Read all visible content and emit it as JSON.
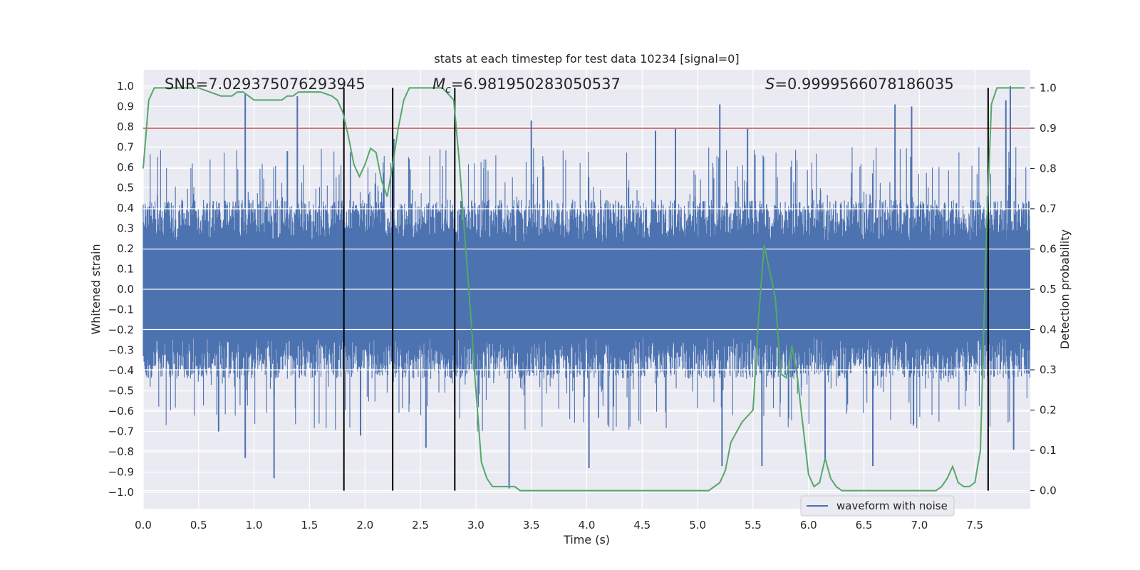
{
  "chart_data": {
    "type": "line",
    "title": "stats at each timestep for test data 10234 [signal=0]",
    "xlabel": "Time (s)",
    "ylabel_left": "Whitened strain",
    "ylabel_right": "Detection probability",
    "xlim": [
      0.0,
      8.0
    ],
    "ylim_left": [
      -1.08,
      1.08
    ],
    "ylim_right": [
      -0.045,
      1.045
    ],
    "x_ticks": [
      0.0,
      0.5,
      1.0,
      1.5,
      2.0,
      2.5,
      3.0,
      3.5,
      4.0,
      4.5,
      5.0,
      5.5,
      6.0,
      6.5,
      7.0,
      7.5
    ],
    "x_tick_labels": [
      "0.0",
      "0.5",
      "1.0",
      "1.5",
      "2.0",
      "2.5",
      "3.0",
      "3.5",
      "4.0",
      "4.5",
      "5.0",
      "5.5",
      "6.0",
      "6.5",
      "7.0",
      "7.5"
    ],
    "y_left_ticks": [
      1.0,
      0.9,
      0.8,
      0.7,
      0.6,
      0.5,
      0.4,
      0.3,
      0.2,
      0.1,
      0.0,
      -0.1,
      -0.2,
      -0.3,
      -0.4,
      -0.5,
      -0.6,
      -0.7,
      -0.8,
      -0.9,
      -1.0
    ],
    "y_left_tick_labels": [
      "1.0",
      "0.9",
      "0.8",
      "0.7",
      "0.6",
      "0.5",
      "0.4",
      "0.3",
      "0.2",
      "0.1",
      "0.0",
      "−0.1",
      "−0.2",
      "−0.3",
      "−0.4",
      "−0.5",
      "−0.6",
      "−0.7",
      "−0.8",
      "−0.9",
      "−1.0"
    ],
    "y_right_ticks": [
      1.0,
      0.9,
      0.8,
      0.7,
      0.6,
      0.5,
      0.4,
      0.3,
      0.2,
      0.1,
      0.0
    ],
    "y_right_tick_labels": [
      "1.0",
      "0.9",
      "0.8",
      "0.7",
      "0.6",
      "0.5",
      "0.4",
      "0.3",
      "0.2",
      "0.1",
      "0.0"
    ],
    "grid": true,
    "annotations": {
      "snr": "SNR=7.029375076293945",
      "mc_symbol": "M",
      "mc_subscript": "c",
      "mc_value": "=6.981950283050537",
      "s_symbol": "S",
      "s_value": "=0.9999566078186035"
    },
    "threshold": {
      "value": 0.9,
      "axis": "right",
      "color": "#c44e52"
    },
    "vertical_markers": [
      1.81,
      2.25,
      2.81,
      7.62
    ],
    "legend": {
      "label": "waveform with noise",
      "placement": "lower-right"
    },
    "waveform": {
      "name": "waveform with noise",
      "color": "#4c72b0",
      "envelope_pos_base": 0.42,
      "envelope_neg_base": -0.42,
      "spikes": [
        [
          0.92,
          0.96
        ],
        [
          1.39,
          0.95
        ],
        [
          1.18,
          -0.93
        ],
        [
          0.92,
          -0.83
        ],
        [
          2.26,
          0.74
        ],
        [
          3.5,
          0.83
        ],
        [
          4.62,
          0.78
        ],
        [
          4.8,
          0.79
        ],
        [
          5.2,
          0.91
        ],
        [
          5.45,
          0.79
        ],
        [
          6.78,
          0.91
        ],
        [
          6.93,
          0.9
        ],
        [
          7.82,
          1.0
        ],
        [
          7.78,
          0.93
        ],
        [
          3.3,
          -0.98
        ],
        [
          4.02,
          -0.88
        ],
        [
          5.22,
          -0.87
        ],
        [
          5.58,
          -0.87
        ],
        [
          6.58,
          -0.87
        ],
        [
          7.85,
          -0.79
        ],
        [
          6.15,
          -0.84
        ],
        [
          2.55,
          -0.78
        ],
        [
          1.96,
          -0.72
        ],
        [
          0.68,
          -0.7
        ],
        [
          1.3,
          0.68
        ]
      ]
    },
    "detection_probability": {
      "name": "detection probability",
      "color": "#55a868",
      "x": [
        0.0,
        0.05,
        0.1,
        0.2,
        0.3,
        0.4,
        0.5,
        0.6,
        0.7,
        0.8,
        0.85,
        0.9,
        0.95,
        1.0,
        1.05,
        1.1,
        1.2,
        1.25,
        1.3,
        1.35,
        1.4,
        1.5,
        1.6,
        1.7,
        1.75,
        1.8,
        1.85,
        1.9,
        1.95,
        2.0,
        2.05,
        2.1,
        2.15,
        2.2,
        2.25,
        2.3,
        2.35,
        2.4,
        2.5,
        2.6,
        2.7,
        2.8,
        2.85,
        2.9,
        2.95,
        3.0,
        3.05,
        3.1,
        3.15,
        3.2,
        3.25,
        3.3,
        3.35,
        3.4,
        3.5,
        3.6,
        3.7,
        3.8,
        3.9,
        4.0,
        4.5,
        5.0,
        5.1,
        5.2,
        5.25,
        5.3,
        5.4,
        5.5,
        5.55,
        5.6,
        5.7,
        5.75,
        5.8,
        5.85,
        5.9,
        5.95,
        6.0,
        6.05,
        6.1,
        6.15,
        6.2,
        6.25,
        6.3,
        6.4,
        6.5,
        6.8,
        7.0,
        7.1,
        7.15,
        7.2,
        7.25,
        7.3,
        7.35,
        7.4,
        7.45,
        7.5,
        7.55,
        7.6,
        7.65,
        7.7,
        7.75,
        7.8,
        7.85,
        7.9,
        7.95
      ],
      "y": [
        0.8,
        0.97,
        1.0,
        1.0,
        1.0,
        1.0,
        1.0,
        0.99,
        0.98,
        0.98,
        0.99,
        0.99,
        0.98,
        0.97,
        0.97,
        0.97,
        0.97,
        0.97,
        0.98,
        0.98,
        0.99,
        0.99,
        0.99,
        0.98,
        0.97,
        0.94,
        0.88,
        0.81,
        0.78,
        0.81,
        0.85,
        0.84,
        0.77,
        0.73,
        0.81,
        0.9,
        0.97,
        1.0,
        1.0,
        1.0,
        1.0,
        0.97,
        0.82,
        0.63,
        0.45,
        0.25,
        0.07,
        0.03,
        0.01,
        0.01,
        0.01,
        0.01,
        0.01,
        0.0,
        0.0,
        0.0,
        0.0,
        0.0,
        0.0,
        0.0,
        0.0,
        0.0,
        0.0,
        0.02,
        0.05,
        0.12,
        0.17,
        0.2,
        0.43,
        0.61,
        0.48,
        0.29,
        0.28,
        0.36,
        0.28,
        0.16,
        0.04,
        0.01,
        0.02,
        0.08,
        0.03,
        0.01,
        0.0,
        0.0,
        0.0,
        0.0,
        0.0,
        0.0,
        0.0,
        0.01,
        0.03,
        0.06,
        0.02,
        0.01,
        0.01,
        0.02,
        0.1,
        0.6,
        0.96,
        1.0,
        1.0,
        1.0,
        1.0,
        1.0,
        1.0
      ]
    }
  }
}
